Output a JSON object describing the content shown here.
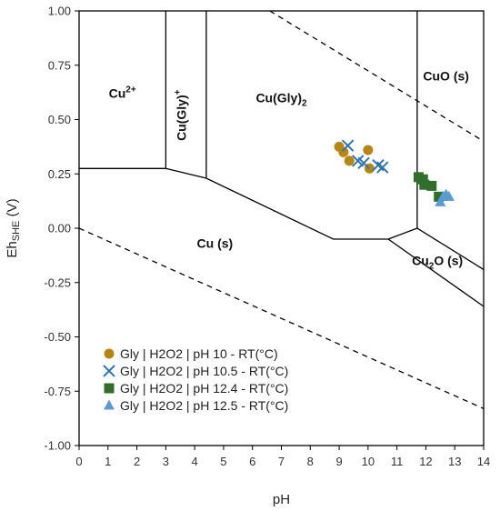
{
  "chart_data": {
    "type": "scatter",
    "title": "",
    "xlabel": "pH",
    "ylabel": {
      "main": "Eh",
      "sub": "SHE",
      "unit": " (V)"
    },
    "xlim": [
      0,
      14
    ],
    "ylim": [
      -1.0,
      1.0
    ],
    "x_ticks": [
      "0",
      "1",
      "2",
      "3",
      "4",
      "5",
      "6",
      "7",
      "8",
      "9",
      "10",
      "11",
      "12",
      "13",
      "14"
    ],
    "y_ticks": [
      "1.00",
      "0.75",
      "0.50",
      "0.25",
      "0.00",
      "-0.25",
      "-0.50",
      "-0.75",
      "-1.00"
    ],
    "grid": false,
    "legend_position": "bottom-left",
    "boundaries": [
      {
        "kind": "solid",
        "points": [
          [
            0,
            0.275
          ],
          [
            3,
            0.275
          ],
          [
            4.4,
            0.23
          ],
          [
            8.8,
            -0.05
          ],
          [
            10.7,
            -0.05
          ],
          [
            11.7,
            0.0
          ],
          [
            14,
            -0.19
          ]
        ]
      },
      {
        "kind": "solid",
        "points": [
          [
            3,
            0.275
          ],
          [
            3,
            1.0
          ]
        ]
      },
      {
        "kind": "solid",
        "points": [
          [
            4.4,
            0.23
          ],
          [
            4.4,
            1.0
          ]
        ]
      },
      {
        "kind": "solid",
        "points": [
          [
            11.7,
            0.0
          ],
          [
            11.7,
            1.0
          ]
        ]
      },
      {
        "kind": "solid",
        "points": [
          [
            10.7,
            -0.05
          ],
          [
            14,
            -0.36
          ]
        ]
      },
      {
        "kind": "dashed",
        "points": [
          [
            6.6,
            1.0
          ],
          [
            14,
            0.4
          ]
        ]
      },
      {
        "kind": "dashed",
        "points": [
          [
            0,
            0.0
          ],
          [
            14,
            -0.83
          ]
        ]
      }
    ],
    "regions": [
      {
        "label": "Cu",
        "sup": "2+",
        "x": 1.5,
        "y": 0.6
      },
      {
        "label": "Cu(Gly)",
        "sup": "+",
        "x": 3.7,
        "y": 0.52,
        "rotate": true
      },
      {
        "label": "Cu(Gly)",
        "sub": "2",
        "x": 7.0,
        "y": 0.58
      },
      {
        "label": "CuO (s)",
        "x": 12.7,
        "y": 0.68
      },
      {
        "label": "Cu (s)",
        "x": 4.7,
        "y": -0.09
      },
      {
        "label": "Cu",
        "sub": "2",
        "tail": "O (s)",
        "x": 12.4,
        "y": -0.17
      }
    ],
    "series": [
      {
        "name": "Gly | H2O2 | pH 10 - RT(°C)",
        "marker": "circle",
        "color": "#b8860b",
        "points": [
          [
            9.0,
            0.375
          ],
          [
            9.15,
            0.35
          ],
          [
            9.35,
            0.31
          ],
          [
            10.0,
            0.36
          ],
          [
            10.05,
            0.275
          ]
        ]
      },
      {
        "name": "Gly | H2O2 | pH 10.5 - RT(°C)",
        "marker": "x",
        "color": "#2e75b6",
        "points": [
          [
            9.3,
            0.38
          ],
          [
            9.65,
            0.31
          ],
          [
            9.85,
            0.3
          ],
          [
            10.35,
            0.29
          ],
          [
            10.5,
            0.28
          ]
        ]
      },
      {
        "name": "Gly | H2O2 | pH 12.4 - RT(°C)",
        "marker": "square",
        "color": "#2f6f2a",
        "points": [
          [
            11.75,
            0.235
          ],
          [
            11.9,
            0.225
          ],
          [
            11.95,
            0.2
          ],
          [
            12.2,
            0.195
          ],
          [
            12.45,
            0.145
          ]
        ]
      },
      {
        "name": "Gly | H2O2 | pH 12.5 - RT(°C)",
        "marker": "triangle",
        "color": "#5b9bd5",
        "points": [
          [
            12.5,
            0.12
          ],
          [
            12.6,
            0.145
          ],
          [
            12.7,
            0.155
          ],
          [
            12.8,
            0.145
          ]
        ]
      }
    ]
  }
}
